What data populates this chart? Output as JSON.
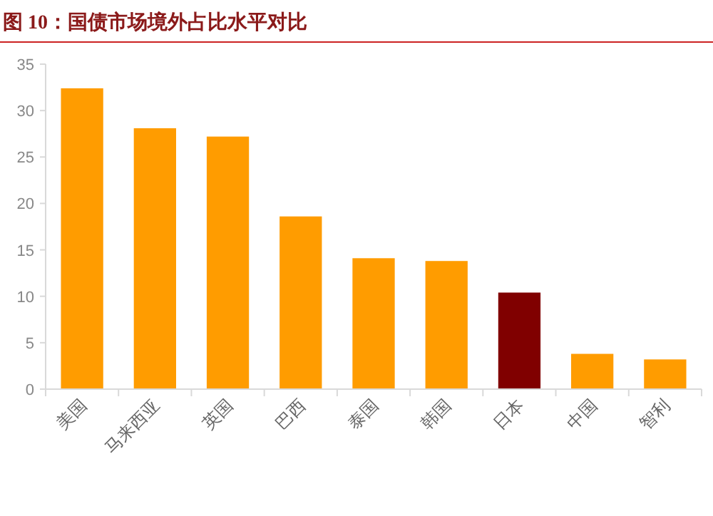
{
  "chart_data": {
    "type": "bar",
    "title": "图 10：国债市场境外占比水平对比",
    "categories": [
      "美国",
      "马来西亚",
      "英国",
      "巴西",
      "泰国",
      "韩国",
      "日本",
      "中国",
      "智利"
    ],
    "values": [
      32.4,
      28.1,
      27.2,
      18.6,
      14.1,
      13.8,
      10.4,
      3.8,
      3.2
    ],
    "colors": [
      "#ff9c00",
      "#ff9c00",
      "#ff9c00",
      "#ff9c00",
      "#ff9c00",
      "#ff9c00",
      "#800000",
      "#ff9c00",
      "#ff9c00"
    ],
    "ylim": [
      0,
      35
    ],
    "yticks": [
      0,
      5,
      10,
      15,
      20,
      25,
      30,
      35
    ]
  }
}
